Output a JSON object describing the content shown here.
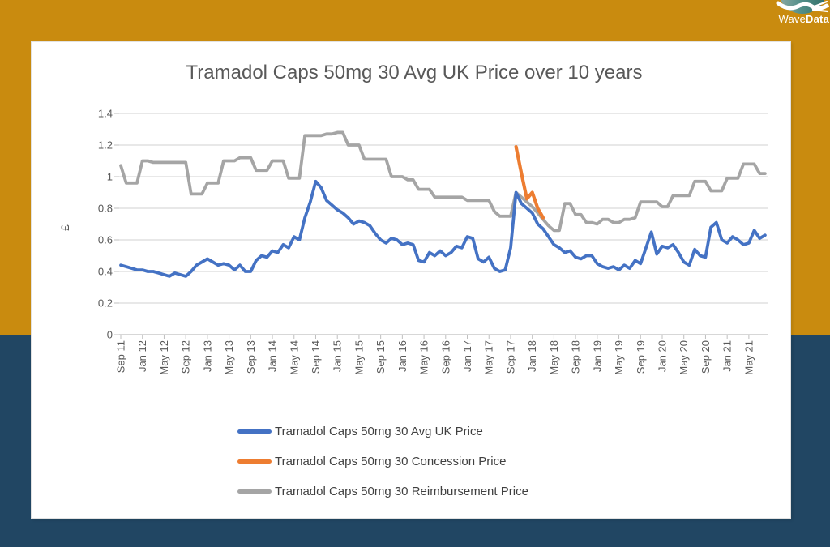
{
  "page": {
    "background_top_color": "#C98B0F",
    "background_bottom_color": "#214663",
    "panel_color": "#FFFFFF"
  },
  "logo": {
    "name": "WaveData",
    "text_regular": "Wave",
    "text_bold": "Data",
    "circle_color": "#4E8A84",
    "wave_color": "#FFFFFF"
  },
  "chart_data": {
    "type": "line",
    "title": "Tramadol Caps 50mg 30 Avg UK Price over 10 years",
    "xlabel": "",
    "ylabel": "£",
    "ylim": [
      0,
      1.4
    ],
    "y_tick_values": [
      0,
      0.2,
      0.4,
      0.6,
      0.8,
      1,
      1.2,
      1.4
    ],
    "y_tick_labels": [
      "0",
      "0.2",
      "0.4",
      "0.6",
      "0.8",
      "1",
      "1.2",
      "1.4"
    ],
    "x_start": "Sep 11",
    "x_end": "Aug 21",
    "x_monthly_points": 120,
    "x_tick_interval_months": 4,
    "x_tick_labels": [
      "Sep 11",
      "Jan 12",
      "May 12",
      "Sep 12",
      "Jan 13",
      "May 13",
      "Sep 13",
      "Jan 14",
      "May 14",
      "Sep 14",
      "Jan 15",
      "May 15",
      "Sep 15",
      "Jan 16",
      "May 16",
      "Sep 16",
      "Jan 17",
      "May 17",
      "Sep 17",
      "Jan 18",
      "May 18",
      "Sep 18",
      "Jan 19",
      "May 19",
      "Sep 19",
      "Jan 20",
      "May 20",
      "Sep 20",
      "Jan 21",
      "May 21"
    ],
    "grid": "horizontal",
    "legend_position": "bottom",
    "axis_text_color": "#595959",
    "gridline_color": "#D9D9D9",
    "axisline_color": "#BFBFBF",
    "series": [
      {
        "name": "Tramadol Caps 50mg 30 Avg UK Price",
        "color": "#4472C4",
        "values": [
          0.44,
          0.43,
          0.42,
          0.41,
          0.41,
          0.4,
          0.4,
          0.39,
          0.38,
          0.37,
          0.39,
          0.38,
          0.37,
          0.4,
          0.44,
          0.46,
          0.48,
          0.46,
          0.44,
          0.45,
          0.44,
          0.41,
          0.44,
          0.4,
          0.4,
          0.47,
          0.5,
          0.49,
          0.53,
          0.52,
          0.57,
          0.55,
          0.62,
          0.6,
          0.74,
          0.84,
          0.97,
          0.93,
          0.85,
          0.82,
          0.79,
          0.77,
          0.74,
          0.7,
          0.72,
          0.71,
          0.69,
          0.64,
          0.6,
          0.58,
          0.61,
          0.6,
          0.57,
          0.58,
          0.57,
          0.47,
          0.46,
          0.52,
          0.5,
          0.53,
          0.5,
          0.52,
          0.56,
          0.55,
          0.62,
          0.61,
          0.48,
          0.46,
          0.49,
          0.42,
          0.4,
          0.41,
          0.55,
          0.9,
          0.83,
          0.8,
          0.77,
          0.7,
          0.67,
          0.62,
          0.57,
          0.55,
          0.52,
          0.53,
          0.49,
          0.48,
          0.5,
          0.5,
          0.45,
          0.43,
          0.42,
          0.43,
          0.41,
          0.44,
          0.42,
          0.47,
          0.45,
          0.55,
          0.65,
          0.51,
          0.56,
          0.55,
          0.57,
          0.52,
          0.46,
          0.44,
          0.54,
          0.5,
          0.49,
          0.68,
          0.71,
          0.6,
          0.58,
          0.62,
          0.6,
          0.57,
          0.58,
          0.66,
          0.61,
          0.63
        ]
      },
      {
        "name": "Tramadol Caps 50mg 30 Concession Price",
        "color": "#ED7D31",
        "values": [
          null,
          null,
          null,
          null,
          null,
          null,
          null,
          null,
          null,
          null,
          null,
          null,
          null,
          null,
          null,
          null,
          null,
          null,
          null,
          null,
          null,
          null,
          null,
          null,
          null,
          null,
          null,
          null,
          null,
          null,
          null,
          null,
          null,
          null,
          null,
          null,
          null,
          null,
          null,
          null,
          null,
          null,
          null,
          null,
          null,
          null,
          null,
          null,
          null,
          null,
          null,
          null,
          null,
          null,
          null,
          null,
          null,
          null,
          null,
          null,
          null,
          null,
          null,
          null,
          null,
          null,
          null,
          null,
          null,
          null,
          null,
          null,
          null,
          1.19,
          1.02,
          0.86,
          0.9,
          0.8,
          0.74,
          null,
          null,
          null,
          null,
          null,
          null,
          null,
          null,
          null,
          null,
          null,
          null,
          null,
          null,
          null,
          null,
          null,
          null,
          null,
          null,
          null,
          null,
          null,
          null,
          null,
          null,
          null,
          null,
          null,
          null,
          null,
          null,
          null,
          null,
          null,
          null,
          null,
          null,
          null,
          null,
          null
        ]
      },
      {
        "name": "Tramadol Caps 50mg 30 Reimbursement Price",
        "color": "#A5A5A5",
        "values": [
          1.07,
          0.96,
          0.96,
          0.96,
          1.1,
          1.1,
          1.09,
          1.09,
          1.09,
          1.09,
          1.09,
          1.09,
          1.09,
          0.89,
          0.89,
          0.89,
          0.96,
          0.96,
          0.96,
          1.1,
          1.1,
          1.1,
          1.12,
          1.12,
          1.12,
          1.04,
          1.04,
          1.04,
          1.1,
          1.1,
          1.1,
          0.99,
          0.99,
          0.99,
          1.26,
          1.26,
          1.26,
          1.26,
          1.27,
          1.27,
          1.28,
          1.28,
          1.2,
          1.2,
          1.2,
          1.11,
          1.11,
          1.11,
          1.11,
          1.11,
          1.0,
          1.0,
          1.0,
          0.98,
          0.98,
          0.92,
          0.92,
          0.92,
          0.87,
          0.87,
          0.87,
          0.87,
          0.87,
          0.87,
          0.85,
          0.85,
          0.85,
          0.85,
          0.85,
          0.78,
          0.75,
          0.75,
          0.75,
          0.9,
          0.87,
          0.84,
          0.81,
          0.77,
          0.73,
          0.69,
          0.66,
          0.66,
          0.83,
          0.83,
          0.76,
          0.76,
          0.71,
          0.71,
          0.7,
          0.73,
          0.73,
          0.71,
          0.71,
          0.73,
          0.73,
          0.74,
          0.84,
          0.84,
          0.84,
          0.84,
          0.81,
          0.81,
          0.88,
          0.88,
          0.88,
          0.88,
          0.97,
          0.97,
          0.97,
          0.91,
          0.91,
          0.91,
          0.99,
          0.99,
          0.99,
          1.08,
          1.08,
          1.08,
          1.02,
          1.02
        ]
      }
    ]
  }
}
